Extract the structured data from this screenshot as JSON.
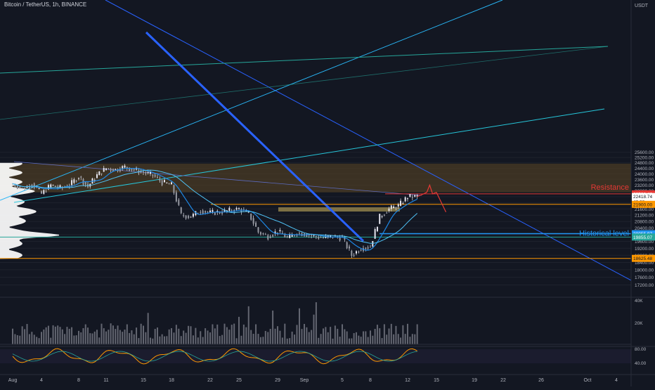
{
  "header": {
    "symbol_title": "Bitcoin / TetherUS, 1h, BINANCE"
  },
  "colors": {
    "background": "#131722",
    "candle": "#e6e6f0",
    "resistance": "#e53935",
    "historical": "#2196f3",
    "support_line": "#ff9800",
    "teal_line": "#26a69a",
    "zone": "#4a3b24",
    "trend_blue": "#2962ff",
    "volume": "#787b86",
    "rsi_orange": "#ff9800",
    "rsi_green": "#26a69a",
    "rsi_red": "#ef5350"
  },
  "chart_data": {
    "type": "line",
    "symbol": "Bitcoin / TetherUS",
    "interval": "1h",
    "exchange": "BINANCE",
    "currency": "USDT",
    "yscale": "log",
    "ylim": [
      16900,
      26400
    ],
    "y_ticks": [
      17200,
      17600,
      18000,
      18400,
      18800,
      19200,
      19600,
      20000,
      20400,
      20800,
      21200,
      21600,
      22000,
      22400,
      22800,
      23200,
      23600,
      24000,
      24400,
      24800,
      25200,
      25600
    ],
    "x_ticks": [
      "Aug",
      "4",
      "8",
      "11",
      "15",
      "18",
      "22",
      "25",
      "29",
      "Sep",
      "5",
      "8",
      "12",
      "15",
      "19",
      "22",
      "26",
      "Oct",
      "4"
    ],
    "price_path": [
      {
        "t": "Aug 1",
        "price": 23300
      },
      {
        "t": "Aug 2",
        "price": 22900
      },
      {
        "t": "Aug 3",
        "price": 23300
      },
      {
        "t": "Aug 4",
        "price": 22600
      },
      {
        "t": "Aug 5",
        "price": 23200
      },
      {
        "t": "Aug 6",
        "price": 23000
      },
      {
        "t": "Aug 7",
        "price": 23200
      },
      {
        "t": "Aug 8",
        "price": 23800
      },
      {
        "t": "Aug 9",
        "price": 23100
      },
      {
        "t": "Aug 10",
        "price": 23900
      },
      {
        "t": "Aug 11",
        "price": 24400
      },
      {
        "t": "Aug 12",
        "price": 24300
      },
      {
        "t": "Aug 13",
        "price": 24500
      },
      {
        "t": "Aug 14",
        "price": 24300
      },
      {
        "t": "Aug 15",
        "price": 24100
      },
      {
        "t": "Aug 16",
        "price": 23900
      },
      {
        "t": "Aug 17",
        "price": 23400
      },
      {
        "t": "Aug 18",
        "price": 23200
      },
      {
        "t": "Aug 19",
        "price": 21200
      },
      {
        "t": "Aug 20",
        "price": 21100
      },
      {
        "t": "Aug 21",
        "price": 21500
      },
      {
        "t": "Aug 22",
        "price": 21350
      },
      {
        "t": "Aug 23",
        "price": 21400
      },
      {
        "t": "Aug 24",
        "price": 21500
      },
      {
        "t": "Aug 25",
        "price": 21600
      },
      {
        "t": "Aug 26",
        "price": 21300
      },
      {
        "t": "Aug 27",
        "price": 20150
      },
      {
        "t": "Aug 28",
        "price": 19900
      },
      {
        "t": "Aug 29",
        "price": 20200
      },
      {
        "t": "Aug 30",
        "price": 19800
      },
      {
        "t": "Aug 31",
        "price": 20100
      },
      {
        "t": "Sep 1",
        "price": 20050
      },
      {
        "t": "Sep 2",
        "price": 19900
      },
      {
        "t": "Sep 3",
        "price": 19800
      },
      {
        "t": "Sep 4",
        "price": 19900
      },
      {
        "t": "Sep 5",
        "price": 19800
      },
      {
        "t": "Sep 6",
        "price": 18800
      },
      {
        "t": "Sep 7",
        "price": 19200
      },
      {
        "t": "Sep 8",
        "price": 19300
      },
      {
        "t": "Sep 9",
        "price": 21100
      },
      {
        "t": "Sep 10",
        "price": 21600
      },
      {
        "t": "Sep 11",
        "price": 21800
      },
      {
        "t": "Sep 12",
        "price": 22400
      },
      {
        "t": "Sep 13",
        "price": 22418
      }
    ],
    "horizontal_levels": [
      {
        "label": "Resistance",
        "price": 22598.46
      },
      {
        "label": "",
        "price": 21900.0
      },
      {
        "label": "Historical level",
        "price": 20055.97
      },
      {
        "label": "",
        "price": 19855.07
      },
      {
        "label": "",
        "price": 18625.48
      }
    ],
    "projection": [
      {
        "t": "Sep 13",
        "price": 22418
      },
      {
        "t": "Sep 13.5",
        "price": 22550
      },
      {
        "t": "Sep 14",
        "price": 22700
      },
      {
        "t": "Sep 14.3",
        "price": 23200
      },
      {
        "t": "Sep 14.6",
        "price": 22600
      },
      {
        "t": "Sep 15",
        "price": 22700
      },
      {
        "t": "Sep 16",
        "price": 21400
      }
    ],
    "volume_ticks": [
      "40K",
      "20K"
    ],
    "rsi_ticks": [
      "80.00",
      "40.00"
    ]
  },
  "price_labels": {
    "resistance_price": "22598.46",
    "current_price": "22418.74",
    "countdown": "40:28",
    "support_21900": "21900.00",
    "historical_price": "20055.97",
    "teal_price": "19855.07",
    "low_price": "18625.48"
  },
  "annotations": {
    "resistance": "Resistance",
    "historical": "Historical level"
  },
  "axis": {
    "currency": "USDT"
  }
}
